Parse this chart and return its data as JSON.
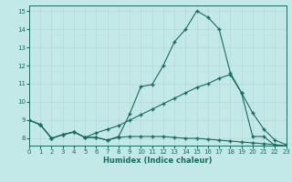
{
  "xlabel": "Humidex (Indice chaleur)",
  "bg_color": "#c3e8e8",
  "grid_color": "#d8f0f0",
  "line_color": "#1a6b60",
  "xlim": [
    0,
    23
  ],
  "ylim": [
    7.6,
    15.3
  ],
  "xticks": [
    0,
    1,
    2,
    3,
    4,
    5,
    6,
    7,
    8,
    9,
    10,
    11,
    12,
    13,
    14,
    15,
    16,
    17,
    18,
    19,
    20,
    21,
    22,
    23
  ],
  "yticks": [
    8,
    9,
    10,
    11,
    12,
    13,
    14,
    15
  ],
  "line1_x": [
    0,
    1,
    2,
    3,
    4,
    5,
    6,
    7,
    8,
    9,
    10,
    11,
    12,
    13,
    14,
    15,
    16,
    17,
    18,
    19,
    20,
    21,
    22,
    23
  ],
  "line1_y": [
    9.0,
    8.75,
    8.0,
    8.2,
    8.35,
    8.05,
    8.05,
    7.9,
    8.1,
    9.35,
    10.85,
    10.95,
    12.0,
    13.3,
    14.0,
    15.0,
    14.65,
    14.0,
    11.6,
    10.5,
    8.1,
    8.1,
    7.6,
    7.55
  ],
  "line2_x": [
    0,
    1,
    2,
    3,
    4,
    5,
    6,
    7,
    8,
    9,
    10,
    11,
    12,
    13,
    14,
    15,
    16,
    17,
    18,
    19,
    20,
    21,
    22,
    23
  ],
  "line2_y": [
    9.0,
    8.75,
    8.0,
    8.2,
    8.35,
    8.05,
    8.3,
    8.5,
    8.7,
    9.0,
    9.3,
    9.6,
    9.9,
    10.2,
    10.5,
    10.8,
    11.0,
    11.3,
    11.5,
    10.5,
    9.4,
    8.5,
    7.9,
    7.65
  ],
  "line3_x": [
    0,
    1,
    2,
    3,
    4,
    5,
    6,
    7,
    8,
    9,
    10,
    11,
    12,
    13,
    14,
    15,
    16,
    17,
    18,
    19,
    20,
    21,
    22,
    23
  ],
  "line3_y": [
    9.0,
    8.75,
    8.0,
    8.2,
    8.35,
    8.05,
    8.05,
    7.9,
    8.05,
    8.1,
    8.1,
    8.1,
    8.1,
    8.05,
    8.0,
    8.0,
    7.95,
    7.9,
    7.85,
    7.8,
    7.75,
    7.7,
    7.65,
    7.6
  ]
}
